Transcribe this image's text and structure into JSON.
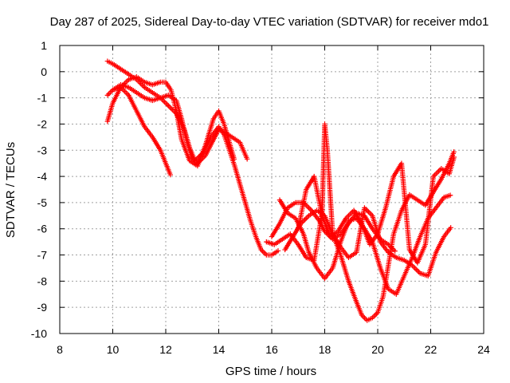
{
  "chart_data": {
    "type": "scatter",
    "title": "Day 287 of 2025, Sidereal Day-to-day VTEC variation (SDTVAR) for receiver mdo1",
    "xlabel": "GPS time / hours",
    "ylabel": "SDTVAR / TECUs",
    "xlim": [
      8,
      24
    ],
    "ylim": [
      -10,
      1
    ],
    "xticks": [
      8,
      10,
      12,
      14,
      16,
      18,
      20,
      22,
      24
    ],
    "yticks": [
      1,
      0,
      -1,
      -2,
      -3,
      -4,
      -5,
      -6,
      -7,
      -8,
      -9,
      -10
    ],
    "grid": true,
    "marker": "plus",
    "color": "#ff0000",
    "series": [
      {
        "x": [
          9.8,
          10.0,
          10.3,
          10.6,
          10.9,
          11.2,
          11.5,
          11.8,
          12.1,
          12.4,
          12.7,
          12.9,
          13.1,
          13.4,
          13.7,
          14.0,
          14.2,
          14.4,
          14.6,
          14.8,
          15.0,
          15.2,
          15.4,
          15.6,
          15.8,
          16.0,
          16.3
        ],
        "y": [
          0.4,
          0.3,
          0.1,
          -0.1,
          -0.3,
          -0.6,
          -0.8,
          -1.0,
          -1.3,
          -1.6,
          -2.2,
          -2.9,
          -3.4,
          -3.1,
          -2.5,
          -2.1,
          -2.4,
          -3.0,
          -3.6,
          -4.3,
          -5.0,
          -5.7,
          -6.3,
          -6.8,
          -7.0,
          -7.0,
          -6.8
        ]
      },
      {
        "x": [
          9.8,
          10.0,
          10.3,
          10.6,
          10.9,
          11.2,
          11.5,
          11.8,
          12.1,
          12.4,
          12.6,
          12.8,
          13.0,
          13.2,
          13.5,
          13.8,
          14.0,
          14.2,
          14.5,
          14.8,
          15.1
        ],
        "y": [
          -0.9,
          -0.7,
          -0.5,
          -0.6,
          -0.8,
          -1.0,
          -1.1,
          -1.0,
          -0.9,
          -1.1,
          -1.8,
          -2.7,
          -3.3,
          -3.5,
          -3.2,
          -2.6,
          -2.2,
          -2.3,
          -2.5,
          -2.7,
          -3.4
        ]
      },
      {
        "x": [
          9.8,
          10.0,
          10.3,
          10.6,
          10.9,
          11.2,
          11.5,
          11.8,
          12.0,
          12.2,
          12.4,
          12.6,
          12.9,
          13.2,
          13.5,
          13.8,
          14.0,
          14.2,
          14.4,
          14.6
        ],
        "y": [
          -1.9,
          -1.2,
          -0.6,
          -0.3,
          -0.2,
          -0.4,
          -0.5,
          -0.4,
          -0.4,
          -0.7,
          -1.5,
          -2.6,
          -3.4,
          -3.6,
          -2.8,
          -1.8,
          -1.5,
          -2.0,
          -2.7,
          -3.4
        ]
      },
      {
        "x": [
          10.0,
          10.3,
          10.6,
          10.9,
          11.2,
          11.5,
          11.8,
          12.0,
          12.2
        ],
        "y": [
          -0.7,
          -0.6,
          -0.9,
          -1.5,
          -2.1,
          -2.5,
          -3.0,
          -3.5,
          -4.0
        ]
      },
      {
        "x": [
          15.8,
          16.1,
          16.4,
          16.7,
          17.0,
          17.3,
          17.6,
          17.9,
          18.0,
          18.1,
          18.3,
          18.6,
          18.9,
          19.2,
          19.5,
          19.8,
          20.1,
          20.4,
          20.7,
          21.0,
          21.3,
          21.6,
          21.9,
          22.2,
          22.5,
          22.8
        ],
        "y": [
          -6.5,
          -6.6,
          -6.4,
          -6.2,
          -6.6,
          -7.1,
          -7.2,
          -5.4,
          -2.0,
          -3.0,
          -6.2,
          -6.7,
          -7.1,
          -6.9,
          -5.2,
          -5.5,
          -6.5,
          -6.9,
          -7.1,
          -7.2,
          -7.4,
          -7.7,
          -7.8,
          -6.9,
          -6.3,
          -5.9
        ]
      },
      {
        "x": [
          16.3,
          16.6,
          16.9,
          17.2,
          17.4,
          17.7,
          18.0,
          18.3,
          18.6,
          18.9,
          19.2,
          19.5,
          19.8,
          20.1,
          20.4,
          20.7,
          21.0,
          21.3,
          21.6,
          21.9,
          22.2,
          22.5,
          22.8
        ],
        "y": [
          -4.9,
          -5.4,
          -5.6,
          -6.2,
          -6.9,
          -7.5,
          -7.9,
          -7.5,
          -6.5,
          -5.7,
          -5.6,
          -6.0,
          -6.5,
          -7.5,
          -8.3,
          -8.5,
          -7.8,
          -7.1,
          -6.3,
          -5.6,
          -5.2,
          -4.8,
          -4.7
        ]
      },
      {
        "x": [
          16.5,
          16.8,
          17.1,
          17.4,
          17.7,
          18.0,
          18.3,
          18.6,
          18.9,
          19.2,
          19.4,
          19.6,
          19.8,
          20.0,
          20.2,
          20.4,
          20.6,
          20.9,
          21.2,
          21.5,
          21.8,
          22.1,
          22.4,
          22.7,
          22.9
        ],
        "y": [
          -6.8,
          -6.3,
          -5.8,
          -5.5,
          -5.3,
          -5.5,
          -6.2,
          -7.0,
          -8.0,
          -8.8,
          -9.3,
          -9.5,
          -9.4,
          -9.2,
          -8.6,
          -7.4,
          -6.2,
          -5.3,
          -4.7,
          -4.9,
          -5.1,
          -4.6,
          -4.1,
          -3.5,
          -3.0
        ]
      },
      {
        "x": [
          17.0,
          17.3,
          17.6,
          17.9,
          18.2,
          18.5,
          18.8,
          19.1,
          19.4,
          19.7,
          20.0,
          20.3,
          20.6,
          20.9,
          21.2,
          21.5,
          21.8,
          22.1,
          22.4,
          22.7,
          22.9
        ],
        "y": [
          -6.0,
          -4.5,
          -4.0,
          -5.5,
          -6.3,
          -6.1,
          -5.6,
          -5.3,
          -5.8,
          -6.6,
          -6.2,
          -5.2,
          -4.0,
          -3.5,
          -6.8,
          -7.3,
          -6.6,
          -4.0,
          -3.7,
          -3.9,
          -3.2
        ]
      },
      {
        "x": [
          16.0,
          16.3,
          16.6,
          16.9,
          17.2,
          17.5,
          17.8,
          18.0,
          18.3,
          18.6,
          18.9,
          19.2,
          19.5,
          19.8,
          20.1,
          20.4,
          20.7
        ],
        "y": [
          -6.3,
          -5.8,
          -5.2,
          -5.0,
          -5.0,
          -5.3,
          -5.7,
          -6.1,
          -6.4,
          -6.2,
          -5.8,
          -5.4,
          -5.5,
          -6.0,
          -6.4,
          -6.6,
          -6.9
        ]
      }
    ]
  }
}
